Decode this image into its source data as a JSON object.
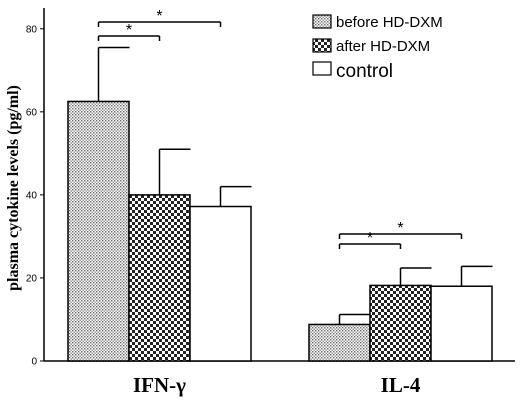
{
  "chart_data": {
    "type": "bar",
    "ylabel": "plasma cytokine levels (pg/ml)",
    "xlabel": "",
    "ylim": [
      0,
      85
    ],
    "yticks": [
      0,
      20,
      40,
      60,
      80
    ],
    "categories": [
      "IFN-γ",
      "IL-4"
    ],
    "series": [
      {
        "name": "before HD-DXM",
        "pattern": "fine-dots",
        "values": [
          62.5,
          8.8
        ],
        "errors": [
          13.0,
          2.4
        ]
      },
      {
        "name": "after HD-DXM",
        "pattern": "checker",
        "values": [
          40.0,
          18.2
        ],
        "errors": [
          11.0,
          4.2
        ]
      },
      {
        "name": "control",
        "pattern": "white",
        "values": [
          37.2,
          18.0
        ],
        "errors": [
          4.8,
          4.8
        ]
      }
    ],
    "significance": [
      {
        "category": "IFN-γ",
        "from": "before HD-DXM",
        "to": "after HD-DXM",
        "label": "*"
      },
      {
        "category": "IFN-γ",
        "from": "before HD-DXM",
        "to": "control",
        "label": "*"
      },
      {
        "category": "IL-4",
        "from": "before HD-DXM",
        "to": "after HD-DXM",
        "label": "*"
      },
      {
        "category": "IL-4",
        "from": "before HD-DXM",
        "to": "control",
        "label": "*"
      }
    ],
    "legend": {
      "position": "top-right"
    },
    "grid": false
  }
}
